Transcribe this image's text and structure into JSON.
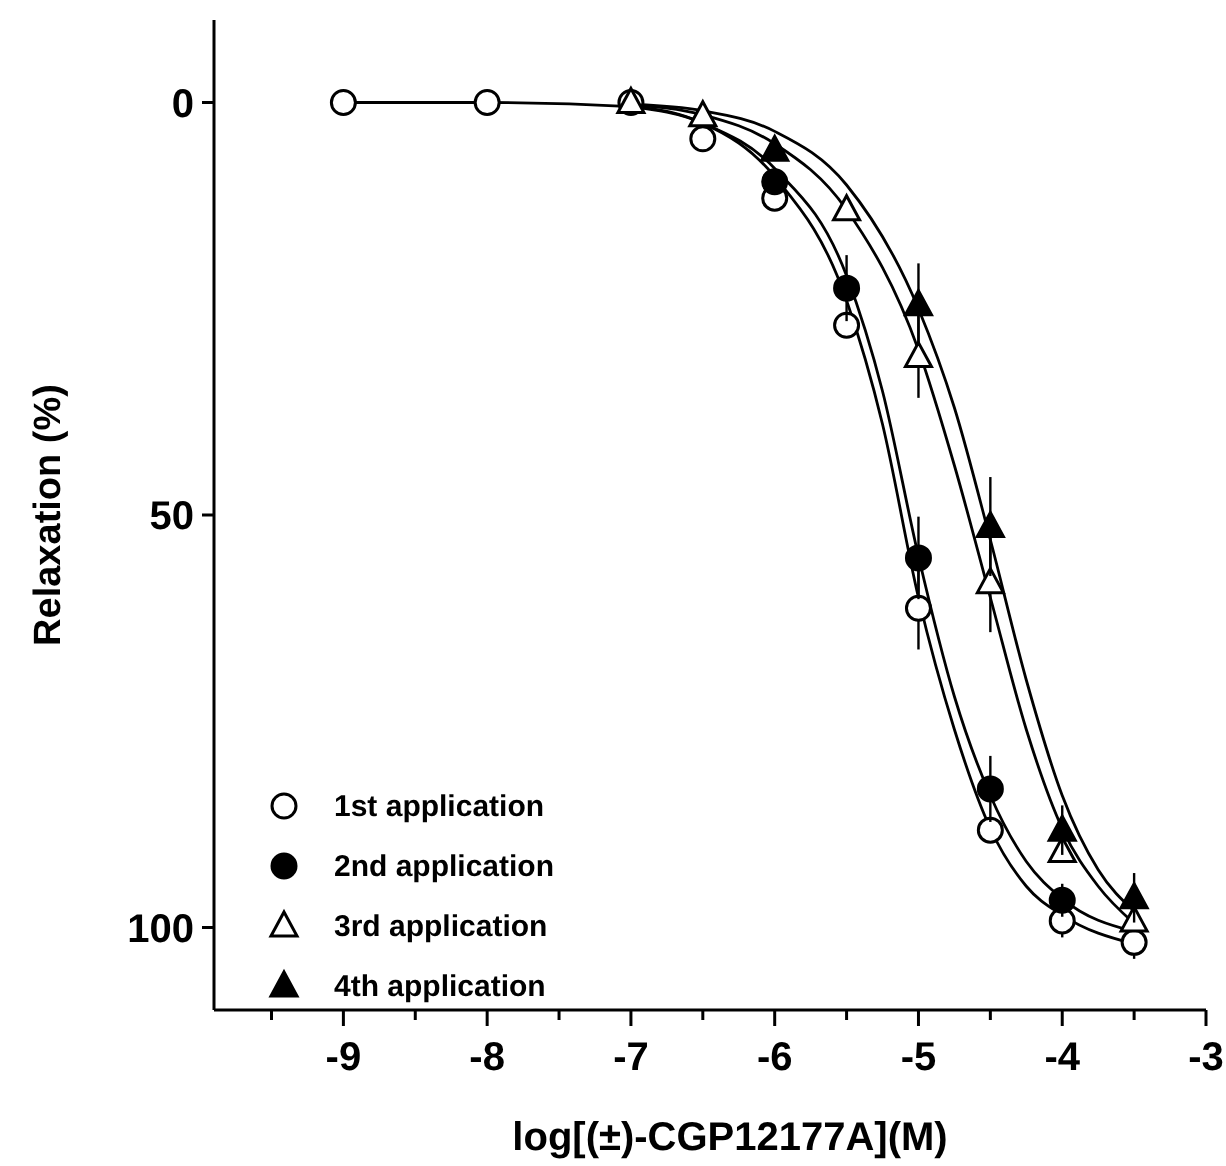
{
  "chart_data": {
    "type": "scatter",
    "xlabel": "log[(±)-CGP12177A](M)",
    "ylabel": "Relaxation (%)",
    "xlim": [
      -9.9,
      -3
    ],
    "ylim": [
      110,
      -10
    ],
    "xticks": [
      {
        "value": -9.5,
        "label": null
      },
      -9,
      {
        "value": -8.5,
        "label": null
      },
      -8,
      {
        "value": -7.5,
        "label": null
      },
      -7,
      {
        "value": -6.5,
        "label": null
      },
      -6,
      {
        "value": -5.5,
        "label": null
      },
      -5,
      {
        "value": -4.5,
        "label": null
      },
      -4,
      {
        "value": -3.5,
        "label": null
      },
      -3
    ],
    "yticks": [
      0,
      50,
      100
    ],
    "grid": false,
    "legend": "bottom left",
    "series": [
      {
        "name": "1st application",
        "marker": "circle",
        "color": "#ffffff",
        "x": [
          -9,
          -8,
          -7,
          -6.5,
          -6,
          -5.5,
          -5,
          -4.5,
          -4,
          -3.5
        ],
        "values": [
          0,
          0,
          0,
          4.4,
          11.6,
          27,
          61.3,
          88.2,
          99.2,
          101.8
        ],
        "errors": [
          null,
          null,
          null,
          null,
          null,
          null,
          5,
          null,
          2,
          2
        ]
      },
      {
        "name": "2nd application",
        "marker": "circle",
        "color": "#000000",
        "x": [
          -6,
          -5.5,
          -5,
          -4.5,
          -4
        ],
        "values": [
          9.6,
          22.5,
          55.2,
          83.2,
          96.7
        ],
        "errors": [
          null,
          4,
          5,
          4,
          2
        ]
      },
      {
        "name": "3rd application",
        "marker": "triangle",
        "color": "#ffffff",
        "x": [
          -7,
          -6.5,
          -5.5,
          -5,
          -4.5,
          -4,
          -3.5
        ],
        "values": [
          0,
          1.6,
          13,
          30.8,
          58.2,
          90.8,
          99.2
        ],
        "errors": [
          null,
          null,
          null,
          5,
          6,
          null,
          null
        ]
      },
      {
        "name": "4th application",
        "marker": "triangle",
        "color": "#000000",
        "x": [
          -6,
          -5,
          -4.5,
          -4,
          -3.5
        ],
        "values": [
          5.8,
          24.5,
          51.4,
          88.2,
          96.4
        ],
        "errors": [
          null,
          5,
          6,
          3,
          3
        ]
      },
      {
        "type": "line",
        "marker": "none",
        "color": "#000000",
        "x": [
          -9,
          -8,
          -7,
          -6.5,
          -6,
          -5.5,
          -5.25,
          -5,
          -4.75,
          -4.5,
          -4.25,
          -4,
          -3.5
        ],
        "values": [
          0,
          0,
          0.5,
          2.5,
          9,
          24,
          39,
          60,
          76,
          88,
          95,
          98.5,
          102
        ]
      },
      {
        "type": "line",
        "marker": "none",
        "color": "#000000",
        "x": [
          -7,
          -6.5,
          -6,
          -5.5,
          -5.25,
          -5,
          -4.75,
          -4.5,
          -4.25,
          -4,
          -3.5
        ],
        "values": [
          0.5,
          2.5,
          8,
          21,
          35,
          55,
          72,
          84,
          92,
          96.5,
          100.5
        ]
      },
      {
        "type": "line",
        "marker": "none",
        "color": "#000000",
        "x": [
          -7,
          -6.5,
          -6,
          -5.5,
          -5,
          -4.75,
          -4.5,
          -4.25,
          -4,
          -3.75,
          -3.5
        ],
        "values": [
          0.3,
          1.5,
          5,
          13,
          30,
          44,
          60,
          76,
          88,
          95,
          99.5
        ]
      },
      {
        "type": "line",
        "marker": "none",
        "color": "#000000",
        "x": [
          -7,
          -6.5,
          -6,
          -5.5,
          -5,
          -4.75,
          -4.5,
          -4.25,
          -4,
          -3.75,
          -3.5
        ],
        "values": [
          0.2,
          1,
          3.5,
          10,
          25,
          37,
          53,
          70,
          84,
          93,
          98
        ]
      }
    ]
  }
}
